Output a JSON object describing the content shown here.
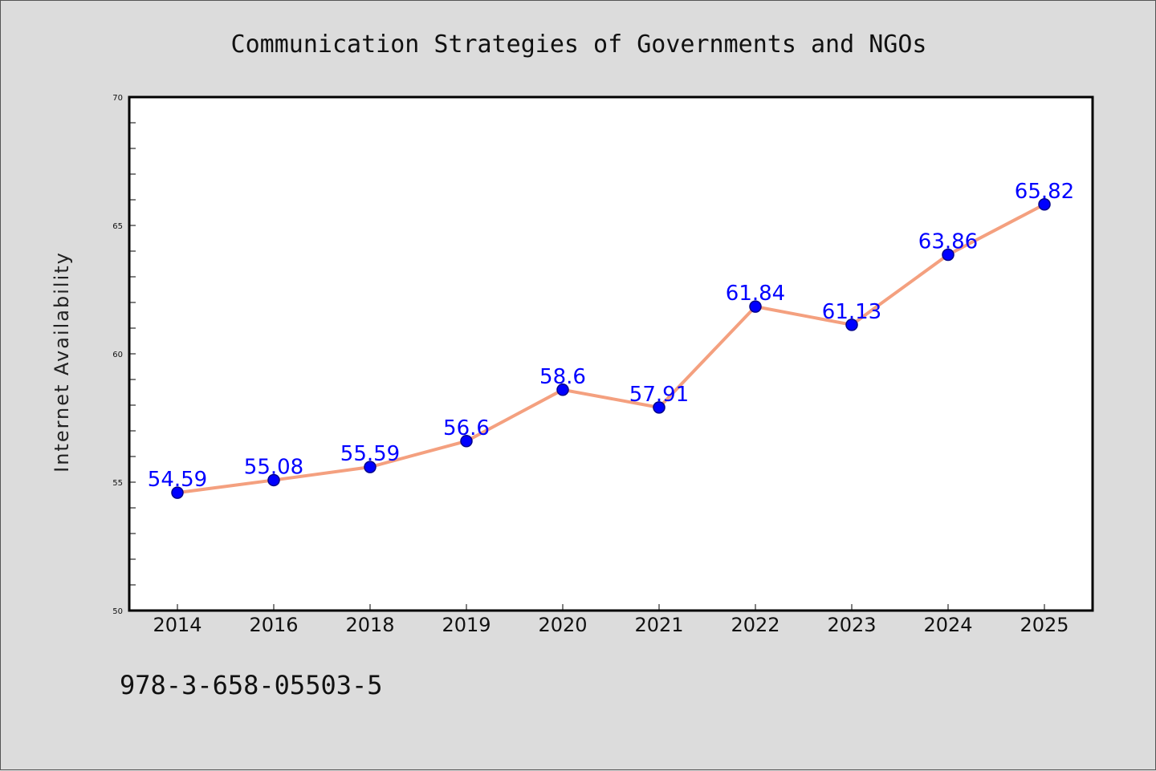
{
  "chart_data": {
    "type": "line",
    "title": "Communication Strategies of Governments and NGOs",
    "xlabel": "",
    "ylabel": "Internet Availability",
    "categories": [
      "2014",
      "2016",
      "2018",
      "2019",
      "2020",
      "2021",
      "2022",
      "2023",
      "2024",
      "2025"
    ],
    "series": [
      {
        "values": [
          54.59,
          55.08,
          55.59,
          56.6,
          58.6,
          57.91,
          61.84,
          61.13,
          63.86,
          65.82
        ],
        "data_labels": [
          "54.59",
          "55.08",
          "55.59",
          "56.6",
          "58.6",
          "57.91",
          "61.84",
          "61.13",
          "63.86",
          "65.82"
        ],
        "line_color": "#f4a07f",
        "marker_color": "#0000ff"
      }
    ],
    "ylim": [
      50,
      70
    ],
    "yticks": [
      "50",
      "55",
      "60",
      "65",
      "70"
    ],
    "grid": false,
    "legend": "none"
  },
  "footer": {
    "isbn": "978-3-658-05503-5"
  },
  "colors": {
    "background": "#dcdcdc",
    "plot_background": "#ffffff",
    "line": "#f4a07f",
    "marker": "#0000ff",
    "data_label": "#0000ff"
  }
}
